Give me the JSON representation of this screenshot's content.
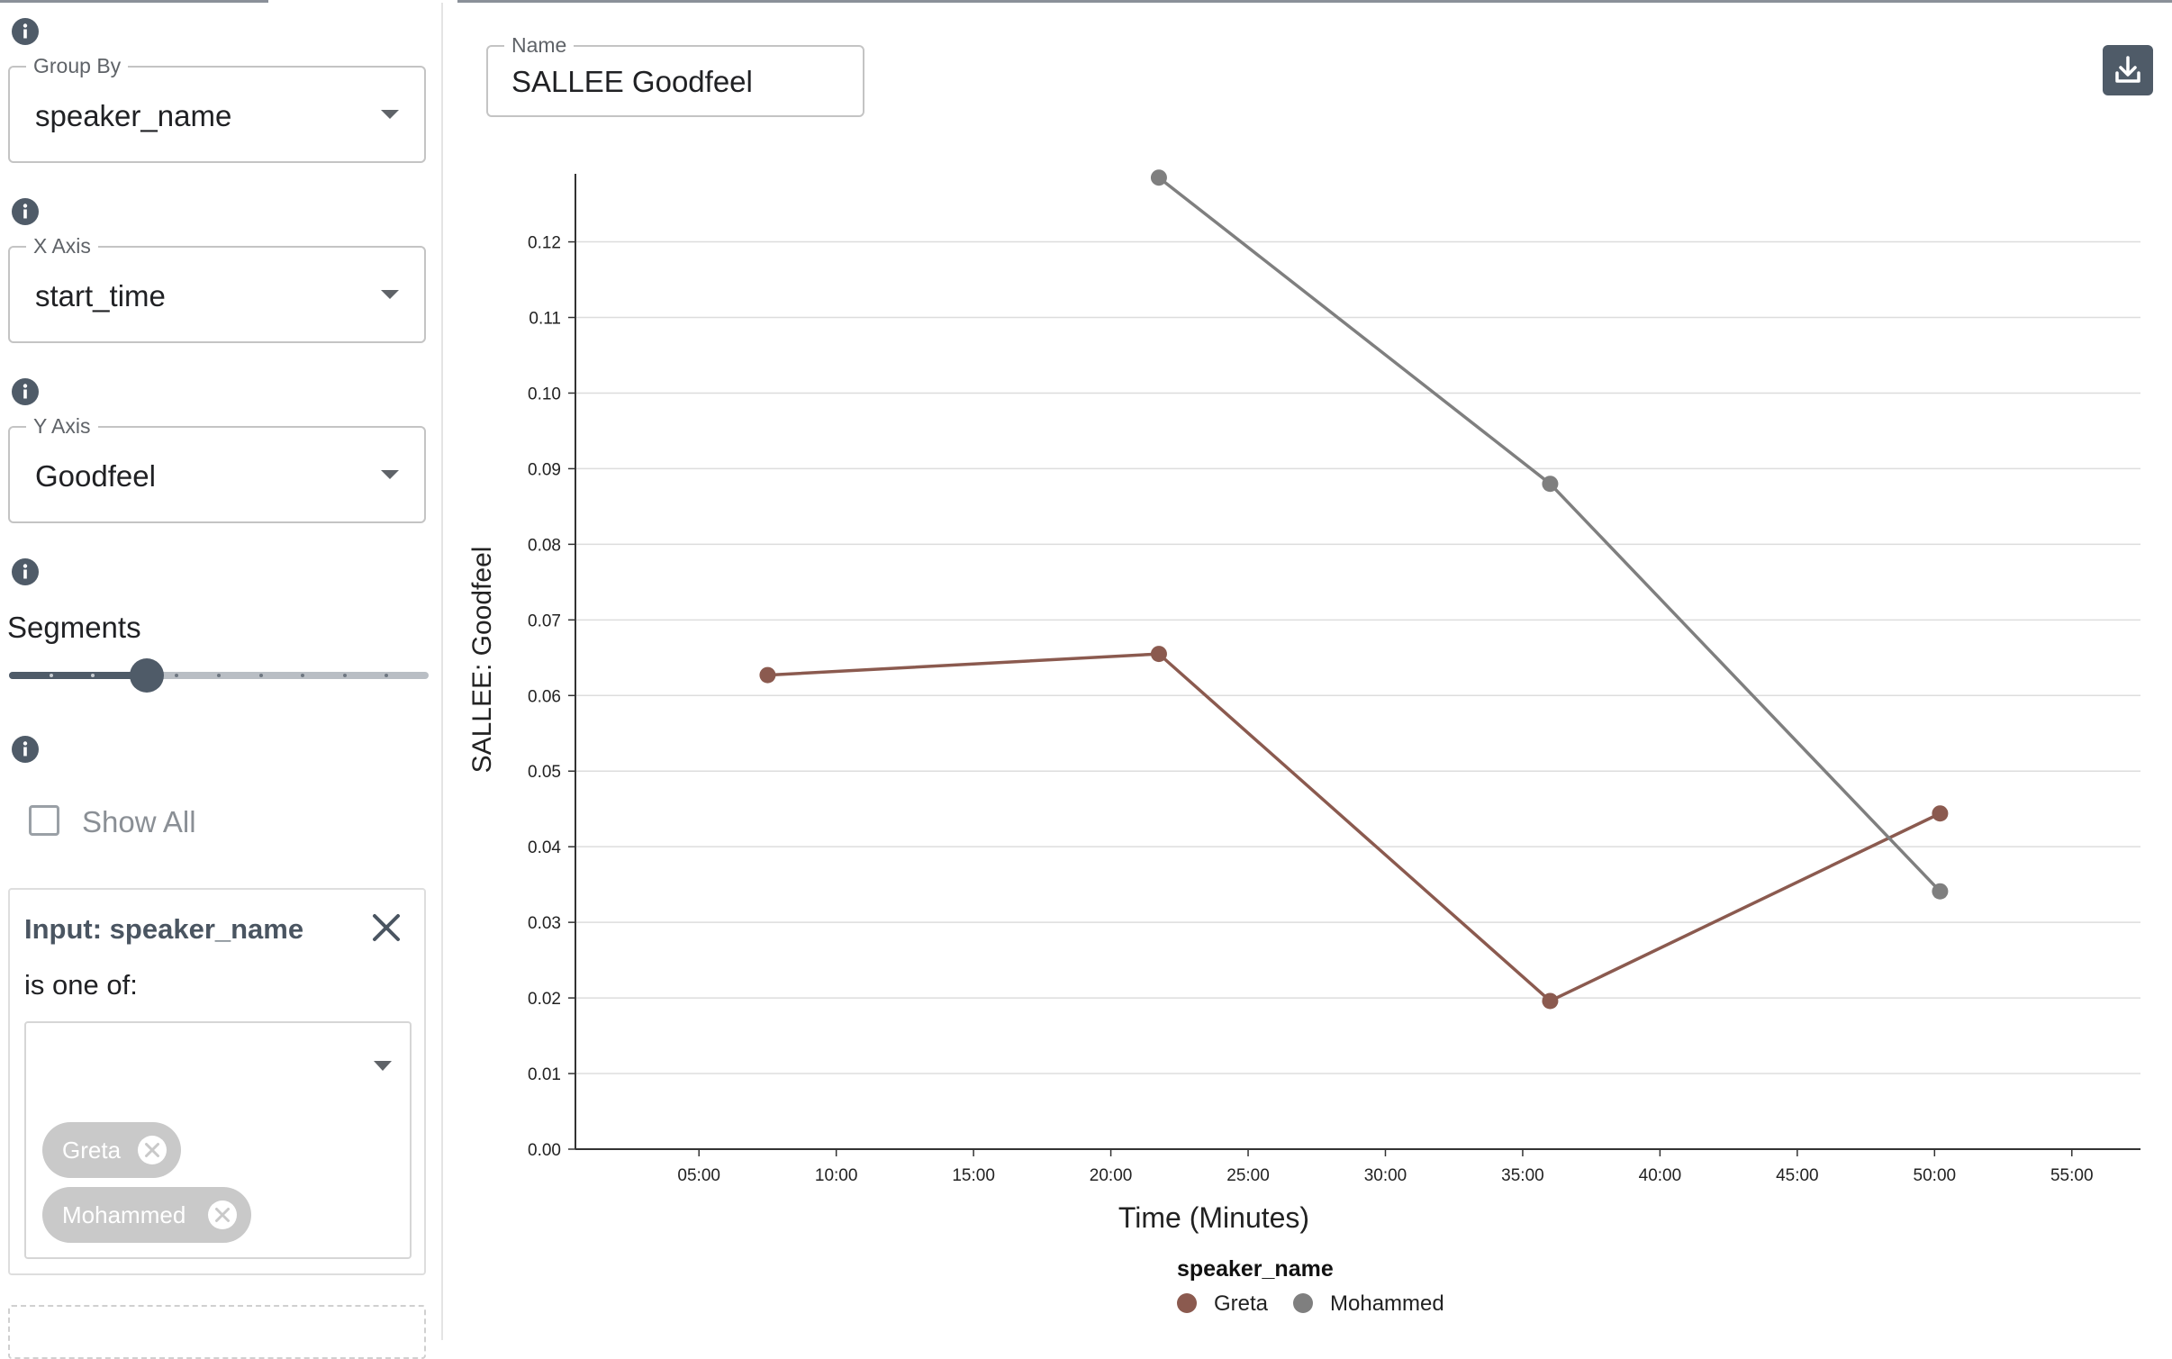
{
  "sidebar": {
    "group_by": {
      "label": "Group By",
      "value": "speaker_name"
    },
    "x_axis": {
      "label": "X Axis",
      "value": "start_time"
    },
    "y_axis": {
      "label": "Y Axis",
      "value": "Goodfeel"
    },
    "segments": {
      "label": "Segments",
      "steps": 10,
      "selected_step": 3
    },
    "show_all": {
      "label": "Show All",
      "checked": false
    },
    "filter": {
      "title": "Input: speaker_name",
      "subtitle": "is one of:",
      "chips": [
        "Greta",
        "Mohammed"
      ]
    }
  },
  "main": {
    "name_field": {
      "label": "Name",
      "value": "SALLEE Goodfeel"
    }
  },
  "colors": {
    "accent": "#4f5b68",
    "greta": "#8b5a4f",
    "mohammed": "#7f7f7f"
  },
  "chart_data": {
    "type": "line",
    "title": "",
    "xlabel": "Time (Minutes)",
    "ylabel": "SALLEE: Goodfeel",
    "x_unit": "minutes",
    "xlim": [
      0.5,
      57.5
    ],
    "ylim": [
      0,
      0.129
    ],
    "x_ticks": [
      5,
      10,
      15,
      20,
      25,
      30,
      35,
      40,
      45,
      50,
      55
    ],
    "x_tick_labels": [
      "05:00",
      "10:00",
      "15:00",
      "20:00",
      "25:00",
      "30:00",
      "35:00",
      "40:00",
      "45:00",
      "50:00",
      "55:00"
    ],
    "y_ticks": [
      0,
      0.01,
      0.02,
      0.03,
      0.04,
      0.05,
      0.06,
      0.07,
      0.08,
      0.09,
      0.1,
      0.11,
      0.12
    ],
    "y_tick_labels": [
      "0.00",
      "0.01",
      "0.02",
      "0.03",
      "0.04",
      "0.05",
      "0.06",
      "0.07",
      "0.08",
      "0.09",
      "0.10",
      "0.11",
      "0.12"
    ],
    "grid": true,
    "legend_title": "speaker_name",
    "legend_position": "bottom-center",
    "series": [
      {
        "name": "Greta",
        "color": "#8b5a4f",
        "x": [
          7.5,
          21.75,
          36,
          50.2
        ],
        "y": [
          0.0627,
          0.0655,
          0.0196,
          0.0444
        ]
      },
      {
        "name": "Mohammed",
        "color": "#7f7f7f",
        "x": [
          21.75,
          36,
          50.2
        ],
        "y": [
          0.1285,
          0.088,
          0.0341
        ]
      }
    ]
  }
}
